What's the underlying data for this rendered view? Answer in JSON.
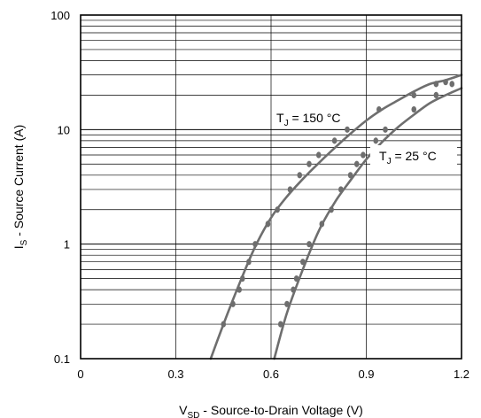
{
  "chart_data": {
    "type": "scatter",
    "xlabel_main": "V",
    "xlabel_sub": "SD",
    "xlabel_rest": " - Source-to-Drain Voltage (V)",
    "ylabel_main": "I",
    "ylabel_sub": "S",
    "ylabel_rest": " - Source Current (A)",
    "xlim": [
      0,
      1.2
    ],
    "ylim": [
      0.1,
      100
    ],
    "yscale": "log",
    "x_ticks": [
      "0",
      "0.3",
      "0.6",
      "0.9",
      "1.2"
    ],
    "y_ticks": [
      "0.1",
      "1",
      "10",
      "100"
    ],
    "grid": true,
    "series": [
      {
        "name_main": "T",
        "name_sub": "J",
        "name_rest": " = 150 °C",
        "color": "#6e6e6e",
        "curve": [
          {
            "x": 0.41,
            "y": 0.1
          },
          {
            "x": 0.45,
            "y": 0.2
          },
          {
            "x": 0.5,
            "y": 0.45
          },
          {
            "x": 0.55,
            "y": 0.95
          },
          {
            "x": 0.6,
            "y": 1.7
          },
          {
            "x": 0.65,
            "y": 2.6
          },
          {
            "x": 0.7,
            "y": 3.7
          },
          {
            "x": 0.75,
            "y": 5.1
          },
          {
            "x": 0.8,
            "y": 6.9
          },
          {
            "x": 0.85,
            "y": 9.2
          },
          {
            "x": 0.9,
            "y": 12
          },
          {
            "x": 0.95,
            "y": 15
          },
          {
            "x": 1.0,
            "y": 18
          },
          {
            "x": 1.05,
            "y": 21.5
          },
          {
            "x": 1.1,
            "y": 25
          },
          {
            "x": 1.15,
            "y": 27
          },
          {
            "x": 1.2,
            "y": 30
          }
        ],
        "points": [
          {
            "x": 0.45,
            "y": 0.2
          },
          {
            "x": 0.48,
            "y": 0.3
          },
          {
            "x": 0.5,
            "y": 0.4
          },
          {
            "x": 0.51,
            "y": 0.5
          },
          {
            "x": 0.53,
            "y": 0.7
          },
          {
            "x": 0.55,
            "y": 1.0
          },
          {
            "x": 0.59,
            "y": 1.5
          },
          {
            "x": 0.62,
            "y": 2.0
          },
          {
            "x": 0.66,
            "y": 3.0
          },
          {
            "x": 0.69,
            "y": 4.0
          },
          {
            "x": 0.72,
            "y": 5.0
          },
          {
            "x": 0.75,
            "y": 6.0
          },
          {
            "x": 0.8,
            "y": 8.0
          },
          {
            "x": 0.84,
            "y": 10
          },
          {
            "x": 0.94,
            "y": 15
          },
          {
            "x": 1.05,
            "y": 20
          },
          {
            "x": 1.12,
            "y": 25
          },
          {
            "x": 1.15,
            "y": 26
          }
        ]
      },
      {
        "name_main": "T",
        "name_sub": "J",
        "name_rest": " = 25 °C",
        "color": "#6e6e6e",
        "curve": [
          {
            "x": 0.61,
            "y": 0.1
          },
          {
            "x": 0.65,
            "y": 0.25
          },
          {
            "x": 0.7,
            "y": 0.6
          },
          {
            "x": 0.75,
            "y": 1.3
          },
          {
            "x": 0.8,
            "y": 2.3
          },
          {
            "x": 0.85,
            "y": 3.6
          },
          {
            "x": 0.9,
            "y": 5.5
          },
          {
            "x": 0.95,
            "y": 7.8
          },
          {
            "x": 1.0,
            "y": 10.5
          },
          {
            "x": 1.05,
            "y": 13.5
          },
          {
            "x": 1.1,
            "y": 17
          },
          {
            "x": 1.15,
            "y": 20
          },
          {
            "x": 1.2,
            "y": 23
          }
        ],
        "points": [
          {
            "x": 0.63,
            "y": 0.2
          },
          {
            "x": 0.65,
            "y": 0.3
          },
          {
            "x": 0.67,
            "y": 0.4
          },
          {
            "x": 0.68,
            "y": 0.5
          },
          {
            "x": 0.7,
            "y": 0.7
          },
          {
            "x": 0.72,
            "y": 1.0
          },
          {
            "x": 0.76,
            "y": 1.5
          },
          {
            "x": 0.79,
            "y": 2.0
          },
          {
            "x": 0.82,
            "y": 3.0
          },
          {
            "x": 0.85,
            "y": 4.0
          },
          {
            "x": 0.87,
            "y": 5.0
          },
          {
            "x": 0.89,
            "y": 6.0
          },
          {
            "x": 0.93,
            "y": 8.0
          },
          {
            "x": 0.96,
            "y": 10
          },
          {
            "x": 1.05,
            "y": 15
          },
          {
            "x": 1.12,
            "y": 20
          },
          {
            "x": 1.17,
            "y": 25
          }
        ]
      }
    ],
    "colors": {
      "axis": "#000000",
      "grid": "#000000",
      "series": "#6e6e6e"
    }
  }
}
